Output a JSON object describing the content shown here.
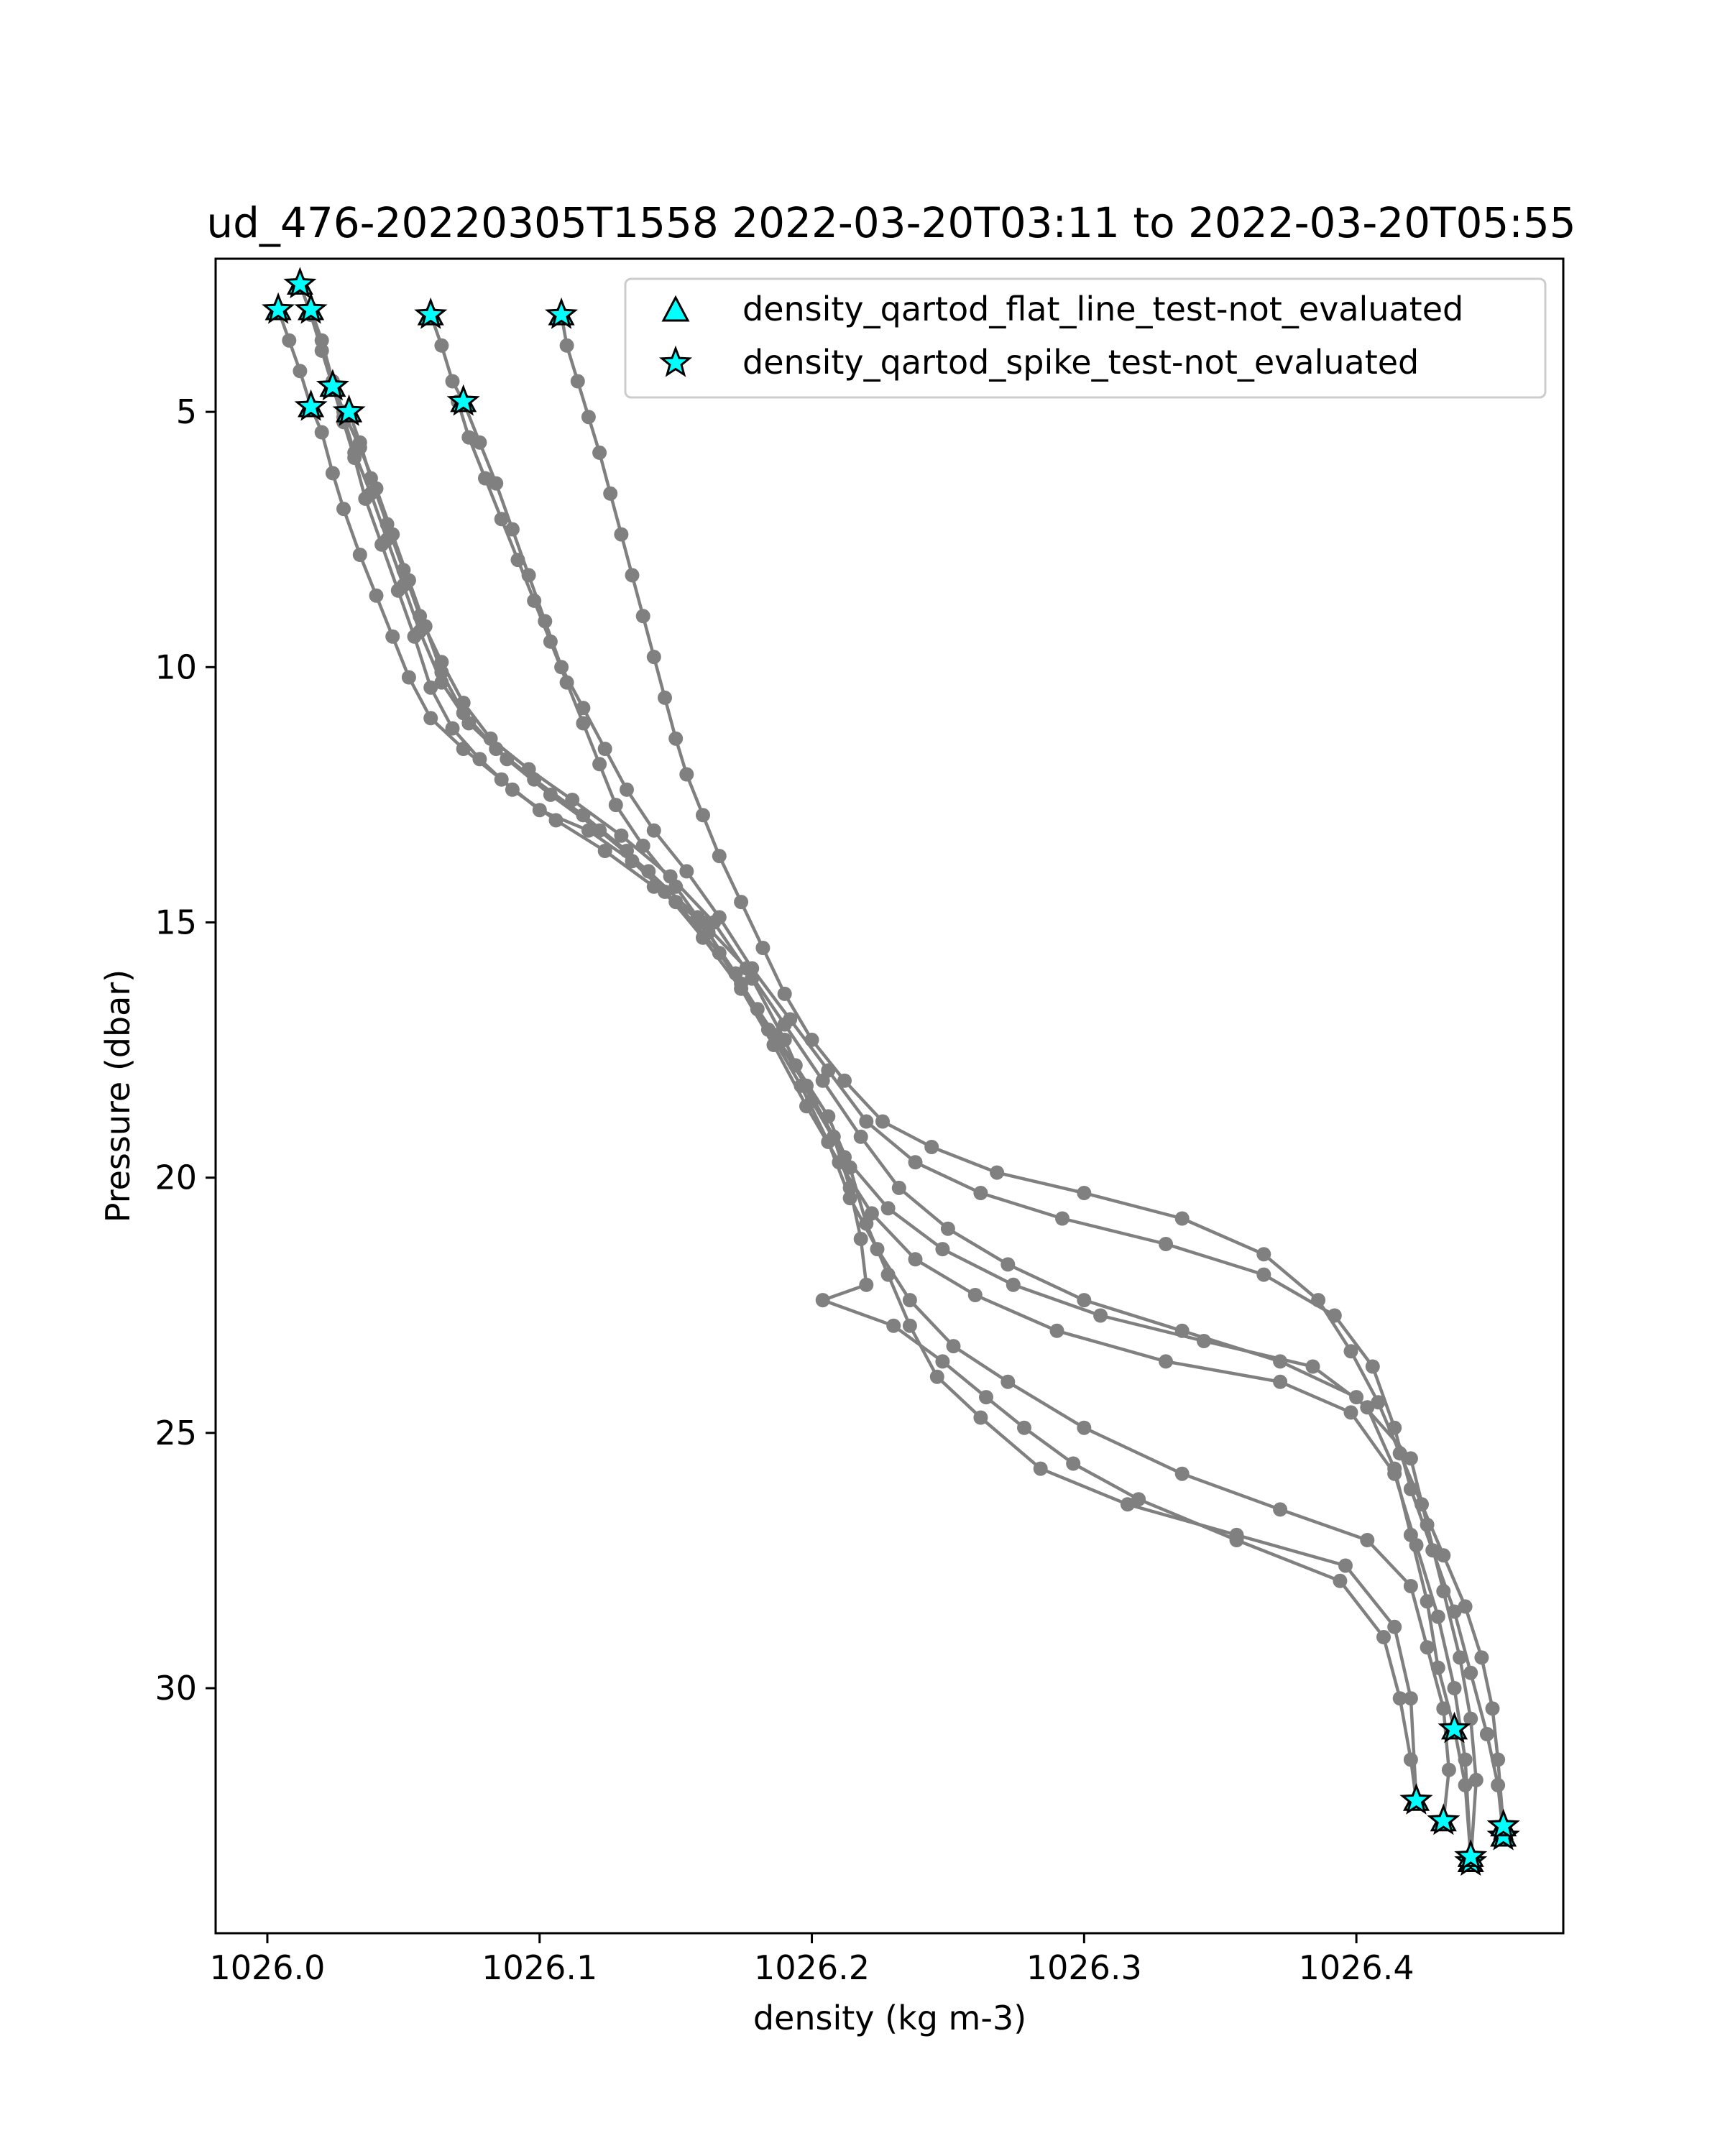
{
  "chart_data": {
    "type": "line",
    "title": "ud_476-20220305T1558 2022-03-20T03:11 to 2022-03-20T05:55",
    "xlabel": "density (kg m-3)",
    "ylabel": "Pressure (dbar)",
    "xlim": [
      1025.981,
      1026.476
    ],
    "ylim": [
      34.8,
      2.0
    ],
    "y_inverted": true,
    "x_ticks": [
      1026.0,
      1026.1,
      1026.2,
      1026.3,
      1026.4
    ],
    "x_tick_labels": [
      "1026.0",
      "1026.1",
      "1026.2",
      "1026.3",
      "1026.4"
    ],
    "y_ticks": [
      5,
      10,
      15,
      20,
      25,
      30
    ],
    "y_tick_labels": [
      "5",
      "10",
      "15",
      "20",
      "25",
      "30"
    ],
    "grid": false,
    "legend_position": "upper-right",
    "legend": [
      {
        "label": "density_qartod_flat_line_test-not_evaluated",
        "marker": "triangle",
        "color": "#00ffff"
      },
      {
        "label": "density_qartod_spike_test-not_evaluated",
        "marker": "star",
        "color": "#00ffff"
      }
    ],
    "line_color": "#808080",
    "marker_fill": "#00ffff",
    "marker_edge": "#000000",
    "series": [
      {
        "values": [
          [
            1026.004,
            3.0
          ],
          [
            1026.008,
            3.6
          ],
          [
            1026.012,
            4.2
          ],
          [
            1026.016,
            4.9
          ],
          [
            1026.02,
            5.4
          ],
          [
            1026.024,
            6.2
          ],
          [
            1026.028,
            6.9
          ],
          [
            1026.034,
            7.8
          ],
          [
            1026.04,
            8.6
          ],
          [
            1026.046,
            9.4
          ],
          [
            1026.052,
            10.2
          ],
          [
            1026.06,
            11.0
          ],
          [
            1026.072,
            11.6
          ],
          [
            1026.086,
            12.2
          ],
          [
            1026.1,
            12.8
          ],
          [
            1026.118,
            13.2
          ],
          [
            1026.134,
            13.8
          ],
          [
            1026.15,
            14.6
          ],
          [
            1026.166,
            15.6
          ],
          [
            1026.18,
            16.7
          ],
          [
            1026.194,
            17.8
          ],
          [
            1026.206,
            18.8
          ],
          [
            1026.214,
            19.8
          ],
          [
            1026.22,
            20.9
          ],
          [
            1026.228,
            21.9
          ],
          [
            1026.236,
            22.9
          ],
          [
            1026.246,
            23.9
          ],
          [
            1026.262,
            24.7
          ],
          [
            1026.284,
            25.7
          ],
          [
            1026.316,
            26.4
          ],
          [
            1026.356,
            27.0
          ],
          [
            1026.396,
            27.6
          ],
          [
            1026.414,
            28.8
          ],
          [
            1026.42,
            30.2
          ],
          [
            1026.422,
            32.2
          ]
        ]
      },
      {
        "values": [
          [
            1026.012,
            2.5
          ],
          [
            1026.016,
            3.1
          ],
          [
            1026.02,
            3.8
          ],
          [
            1026.024,
            4.5
          ],
          [
            1026.028,
            5.1
          ],
          [
            1026.032,
            5.8
          ],
          [
            1026.038,
            6.6
          ],
          [
            1026.044,
            7.5
          ],
          [
            1026.05,
            8.4
          ],
          [
            1026.056,
            9.3
          ],
          [
            1026.064,
            10.3
          ],
          [
            1026.074,
            11.1
          ],
          [
            1026.088,
            11.8
          ],
          [
            1026.104,
            12.5
          ],
          [
            1026.122,
            13.2
          ],
          [
            1026.14,
            14.0
          ],
          [
            1026.158,
            14.9
          ],
          [
            1026.172,
            16.0
          ],
          [
            1026.184,
            17.1
          ],
          [
            1026.196,
            18.2
          ],
          [
            1026.206,
            19.3
          ],
          [
            1026.214,
            20.4
          ],
          [
            1026.224,
            21.4
          ],
          [
            1026.236,
            22.4
          ],
          [
            1026.252,
            23.3
          ],
          [
            1026.272,
            24.0
          ],
          [
            1026.3,
            24.9
          ],
          [
            1026.336,
            25.8
          ],
          [
            1026.372,
            26.5
          ],
          [
            1026.404,
            27.1
          ],
          [
            1026.42,
            28.0
          ],
          [
            1026.426,
            29.2
          ],
          [
            1026.432,
            30.4
          ],
          [
            1026.434,
            31.6
          ],
          [
            1026.432,
            32.6
          ]
        ]
      },
      {
        "values": [
          [
            1026.016,
            3.0
          ],
          [
            1026.02,
            3.6
          ],
          [
            1026.024,
            4.4
          ],
          [
            1026.028,
            5.0
          ],
          [
            1026.034,
            5.7
          ],
          [
            1026.04,
            6.5
          ],
          [
            1026.046,
            7.4
          ],
          [
            1026.052,
            8.3
          ],
          [
            1026.058,
            9.2
          ],
          [
            1026.064,
            10.1
          ],
          [
            1026.072,
            10.9
          ],
          [
            1026.084,
            11.6
          ],
          [
            1026.098,
            12.2
          ],
          [
            1026.116,
            12.9
          ],
          [
            1026.132,
            13.6
          ],
          [
            1026.146,
            14.4
          ],
          [
            1026.16,
            15.3
          ],
          [
            1026.174,
            16.3
          ],
          [
            1026.186,
            17.4
          ],
          [
            1026.198,
            18.6
          ],
          [
            1026.21,
            19.7
          ],
          [
            1026.222,
            20.7
          ],
          [
            1026.238,
            21.6
          ],
          [
            1026.26,
            22.3
          ],
          [
            1026.29,
            23.0
          ],
          [
            1026.33,
            23.6
          ],
          [
            1026.372,
            24.0
          ],
          [
            1026.398,
            24.6
          ],
          [
            1026.414,
            25.8
          ],
          [
            1026.422,
            27.2
          ],
          [
            1026.43,
            28.6
          ],
          [
            1026.436,
            30.0
          ],
          [
            1026.44,
            31.4
          ],
          [
            1026.442,
            33.3
          ]
        ]
      },
      {
        "values": [
          [
            1026.024,
            4.5
          ],
          [
            1026.028,
            5.2
          ],
          [
            1026.032,
            5.9
          ],
          [
            1026.036,
            6.7
          ],
          [
            1026.042,
            7.6
          ],
          [
            1026.048,
            8.5
          ],
          [
            1026.054,
            9.4
          ],
          [
            1026.06,
            10.4
          ],
          [
            1026.068,
            11.2
          ],
          [
            1026.078,
            11.8
          ],
          [
            1026.09,
            12.4
          ],
          [
            1026.106,
            13.0
          ],
          [
            1026.124,
            13.6
          ],
          [
            1026.142,
            14.3
          ],
          [
            1026.16,
            15.0
          ],
          [
            1026.176,
            15.9
          ],
          [
            1026.19,
            17.0
          ],
          [
            1026.204,
            18.1
          ],
          [
            1026.218,
            19.2
          ],
          [
            1026.232,
            20.2
          ],
          [
            1026.25,
            21.0
          ],
          [
            1026.272,
            21.7
          ],
          [
            1026.3,
            22.4
          ],
          [
            1026.336,
            23.0
          ],
          [
            1026.372,
            23.6
          ],
          [
            1026.4,
            24.3
          ],
          [
            1026.42,
            25.5
          ],
          [
            1026.426,
            26.8
          ],
          [
            1026.432,
            28.1
          ],
          [
            1026.438,
            29.4
          ],
          [
            1026.442,
            30.6
          ],
          [
            1026.444,
            31.8
          ],
          [
            1026.442,
            33.4
          ]
        ]
      },
      {
        "values": [
          [
            1026.03,
            5.0
          ],
          [
            1026.034,
            5.6
          ],
          [
            1026.038,
            6.3
          ],
          [
            1026.044,
            7.2
          ],
          [
            1026.05,
            8.1
          ],
          [
            1026.056,
            9.0
          ],
          [
            1026.064,
            9.9
          ],
          [
            1026.072,
            10.7
          ],
          [
            1026.082,
            11.4
          ],
          [
            1026.096,
            12.0
          ],
          [
            1026.112,
            12.6
          ],
          [
            1026.13,
            13.3
          ],
          [
            1026.148,
            14.1
          ],
          [
            1026.164,
            15.0
          ],
          [
            1026.178,
            16.1
          ],
          [
            1026.19,
            17.3
          ],
          [
            1026.2,
            18.5
          ],
          [
            1026.212,
            19.6
          ],
          [
            1026.228,
            20.6
          ],
          [
            1026.248,
            21.4
          ],
          [
            1026.274,
            22.1
          ],
          [
            1026.306,
            22.7
          ],
          [
            1026.344,
            23.2
          ],
          [
            1026.384,
            23.7
          ],
          [
            1026.404,
            24.5
          ],
          [
            1026.414,
            25.7
          ],
          [
            1026.42,
            27.0
          ],
          [
            1026.426,
            28.3
          ],
          [
            1026.43,
            29.6
          ],
          [
            1026.436,
            30.8
          ],
          [
            1026.44,
            31.9
          ],
          [
            1026.442,
            33.3
          ]
        ]
      },
      {
        "values": [
          [
            1026.06,
            3.1
          ],
          [
            1026.064,
            3.7
          ],
          [
            1026.068,
            4.4
          ],
          [
            1026.072,
            4.8
          ],
          [
            1026.078,
            5.6
          ],
          [
            1026.084,
            6.4
          ],
          [
            1026.09,
            7.3
          ],
          [
            1026.096,
            8.2
          ],
          [
            1026.102,
            9.1
          ],
          [
            1026.108,
            10.0
          ],
          [
            1026.116,
            10.8
          ],
          [
            1026.124,
            11.6
          ],
          [
            1026.132,
            12.4
          ],
          [
            1026.142,
            13.2
          ],
          [
            1026.154,
            14.0
          ],
          [
            1026.166,
            14.9
          ],
          [
            1026.178,
            15.9
          ],
          [
            1026.192,
            16.9
          ],
          [
            1026.206,
            17.9
          ],
          [
            1026.22,
            18.9
          ],
          [
            1026.238,
            19.7
          ],
          [
            1026.262,
            20.3
          ],
          [
            1026.292,
            20.8
          ],
          [
            1026.33,
            21.3
          ],
          [
            1026.366,
            21.9
          ],
          [
            1026.392,
            22.7
          ],
          [
            1026.406,
            23.7
          ],
          [
            1026.414,
            24.9
          ],
          [
            1026.42,
            26.1
          ],
          [
            1026.428,
            27.3
          ],
          [
            1026.436,
            28.5
          ],
          [
            1026.442,
            29.7
          ],
          [
            1026.448,
            30.9
          ],
          [
            1026.452,
            31.9
          ],
          [
            1026.454,
            32.9
          ]
        ]
      },
      {
        "values": [
          [
            1026.108,
            3.1
          ],
          [
            1026.11,
            3.7
          ],
          [
            1026.114,
            4.4
          ],
          [
            1026.118,
            5.1
          ],
          [
            1026.122,
            5.8
          ],
          [
            1026.126,
            6.6
          ],
          [
            1026.13,
            7.4
          ],
          [
            1026.134,
            8.2
          ],
          [
            1026.138,
            9.0
          ],
          [
            1026.142,
            9.8
          ],
          [
            1026.146,
            10.6
          ],
          [
            1026.15,
            11.4
          ],
          [
            1026.154,
            12.1
          ],
          [
            1026.16,
            12.9
          ],
          [
            1026.166,
            13.7
          ],
          [
            1026.174,
            14.6
          ],
          [
            1026.182,
            15.5
          ],
          [
            1026.19,
            16.4
          ],
          [
            1026.2,
            17.3
          ],
          [
            1026.212,
            18.1
          ],
          [
            1026.226,
            18.9
          ],
          [
            1026.244,
            19.4
          ],
          [
            1026.268,
            19.9
          ],
          [
            1026.3,
            20.3
          ],
          [
            1026.336,
            20.8
          ],
          [
            1026.366,
            21.5
          ],
          [
            1026.386,
            22.4
          ],
          [
            1026.398,
            23.4
          ],
          [
            1026.408,
            24.4
          ],
          [
            1026.416,
            25.4
          ],
          [
            1026.424,
            26.4
          ],
          [
            1026.432,
            27.4
          ],
          [
            1026.44,
            28.4
          ],
          [
            1026.446,
            29.4
          ],
          [
            1026.45,
            30.4
          ],
          [
            1026.452,
            31.4
          ],
          [
            1026.454,
            32.7
          ]
        ]
      },
      {
        "values": [
          [
            1026.07,
            4.8
          ],
          [
            1026.074,
            5.5
          ],
          [
            1026.08,
            6.3
          ],
          [
            1026.086,
            7.1
          ],
          [
            1026.092,
            7.9
          ],
          [
            1026.098,
            8.7
          ],
          [
            1026.104,
            9.5
          ],
          [
            1026.11,
            10.3
          ],
          [
            1026.116,
            11.1
          ],
          [
            1026.122,
            11.9
          ],
          [
            1026.128,
            12.7
          ],
          [
            1026.138,
            13.5
          ],
          [
            1026.15,
            14.3
          ],
          [
            1026.162,
            15.2
          ],
          [
            1026.174,
            16.2
          ],
          [
            1026.186,
            17.2
          ],
          [
            1026.198,
            18.2
          ],
          [
            1026.208,
            19.2
          ],
          [
            1026.214,
            20.2
          ],
          [
            1026.218,
            21.2
          ],
          [
            1026.22,
            22.1
          ],
          [
            1026.204,
            22.4
          ],
          [
            1026.23,
            22.9
          ],
          [
            1026.248,
            23.6
          ],
          [
            1026.264,
            24.3
          ],
          [
            1026.278,
            24.9
          ],
          [
            1026.296,
            25.6
          ],
          [
            1026.32,
            26.3
          ],
          [
            1026.356,
            27.1
          ],
          [
            1026.394,
            27.9
          ],
          [
            1026.41,
            29.0
          ],
          [
            1026.416,
            30.2
          ],
          [
            1026.42,
            31.4
          ],
          [
            1026.422,
            32.2
          ]
        ]
      }
    ],
    "spike_flags": [
      [
        1026.004,
        3.0
      ],
      [
        1026.012,
        2.5
      ],
      [
        1026.016,
        3.0
      ],
      [
        1026.024,
        4.5
      ],
      [
        1026.016,
        4.9
      ],
      [
        1026.03,
        5.0
      ],
      [
        1026.06,
        3.1
      ],
      [
        1026.108,
        3.1
      ],
      [
        1026.072,
        4.8
      ],
      [
        1026.422,
        32.2
      ],
      [
        1026.432,
        32.6
      ],
      [
        1026.442,
        33.4
      ],
      [
        1026.442,
        33.3
      ],
      [
        1026.436,
        30.8
      ],
      [
        1026.454,
        32.9
      ],
      [
        1026.454,
        32.7
      ]
    ]
  }
}
